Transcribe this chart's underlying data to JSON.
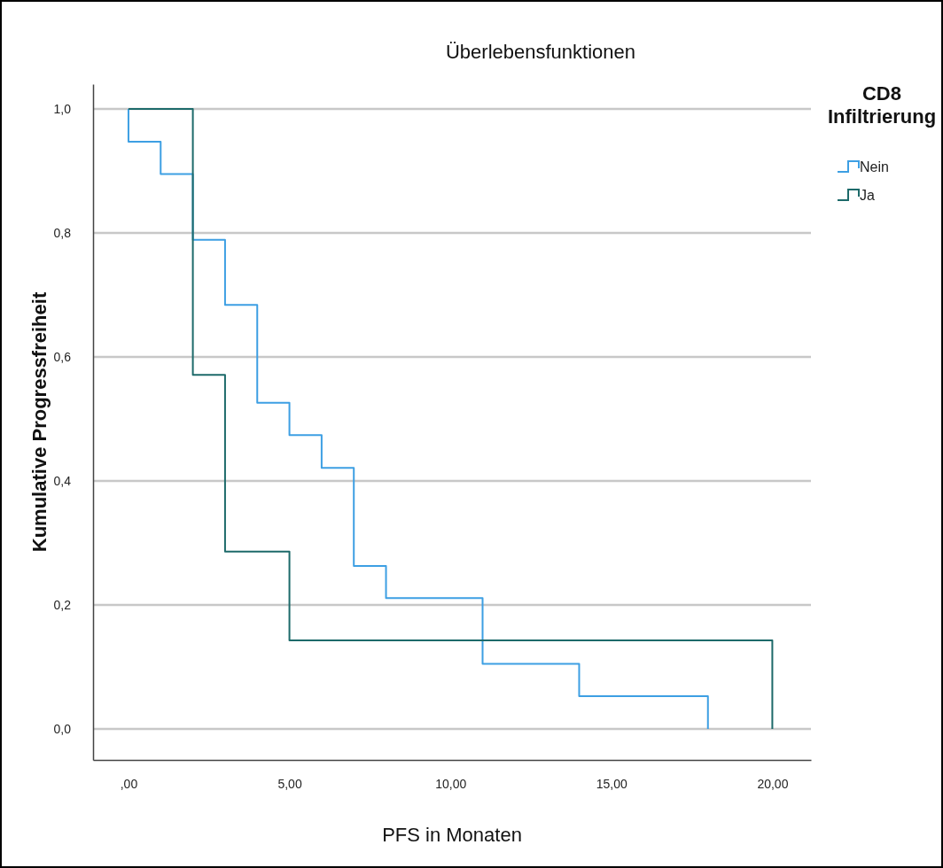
{
  "chart_data": {
    "type": "step",
    "title": "Überlebensfunktionen",
    "xlabel": "PFS in Monaten",
    "ylabel": "Kumulative Progressfreiheit",
    "legend_title": "CD8 Infiltrierung",
    "series": [
      {
        "name": "Nein",
        "color": "#3d9fe3",
        "x": [
          0,
          0,
          1,
          2,
          3,
          4,
          5,
          6,
          7,
          8,
          11,
          14,
          18,
          18
        ],
        "values": [
          1,
          0.947,
          0.895,
          0.789,
          0.684,
          0.526,
          0.474,
          0.421,
          0.263,
          0.211,
          0.105,
          0.053,
          0,
          0
        ]
      },
      {
        "name": "Ja",
        "color": "#1d6a6a",
        "x": [
          0,
          2,
          3,
          5,
          20,
          20
        ],
        "values": [
          1,
          0.571,
          0.286,
          0.143,
          0,
          0
        ]
      }
    ],
    "xlim": [
      -1.1,
      21.2
    ],
    "ylim": [
      -0.05,
      1.04
    ],
    "xticks": [
      {
        "value": 0,
        "label": ",00"
      },
      {
        "value": 5,
        "label": "5,00"
      },
      {
        "value": 10,
        "label": "10,00"
      },
      {
        "value": 15,
        "label": "15,00"
      },
      {
        "value": 20,
        "label": "20,00"
      }
    ],
    "yticks": [
      {
        "value": 0,
        "label": "0,0"
      },
      {
        "value": 0.2,
        "label": "0,2"
      },
      {
        "value": 0.4,
        "label": "0,4"
      },
      {
        "value": 0.6,
        "label": "0,6"
      },
      {
        "value": 0.8,
        "label": "0,8"
      },
      {
        "value": 1,
        "label": "1,0"
      }
    ],
    "grid": "y",
    "legend": "top right",
    "marker": "none",
    "line_style": "solid"
  }
}
